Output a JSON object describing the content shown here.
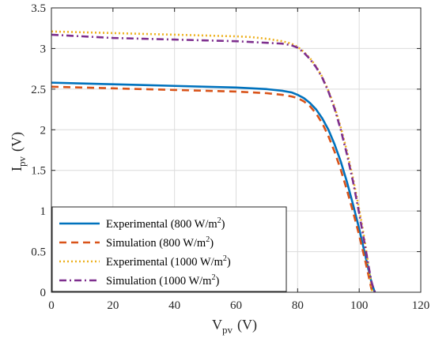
{
  "chart_data": {
    "type": "line",
    "title": "",
    "xlabel": {
      "main": "V",
      "sub": "pv",
      "unit": "(V)"
    },
    "ylabel": {
      "main": "I",
      "sub": "pv",
      "unit": "(V)"
    },
    "xlim": [
      0,
      120
    ],
    "ylim": [
      0,
      3.5
    ],
    "xticks": [
      0,
      20,
      40,
      60,
      80,
      100,
      120
    ],
    "yticks": [
      0,
      0.5,
      1,
      1.5,
      2,
      2.5,
      3,
      3.5
    ],
    "grid": true,
    "legend_position": "bottom-left",
    "series": [
      {
        "name": "Experimental (800 W/m2)",
        "label_main": "Experimental (800 W/m",
        "label_sup": "2",
        "label_end": ")",
        "color": "#0072BD",
        "style": "solid",
        "x": [
          0,
          10,
          20,
          30,
          40,
          50,
          60,
          65,
          70,
          75,
          78,
          80,
          82,
          84,
          86,
          88,
          90,
          92,
          94,
          96,
          98,
          100,
          102,
          103,
          104,
          104.8,
          105.1
        ],
        "y": [
          2.58,
          2.57,
          2.56,
          2.55,
          2.54,
          2.53,
          2.52,
          2.51,
          2.5,
          2.48,
          2.46,
          2.43,
          2.39,
          2.33,
          2.25,
          2.14,
          2.0,
          1.82,
          1.61,
          1.36,
          1.08,
          0.78,
          0.45,
          0.28,
          0.12,
          0.03,
          0
        ]
      },
      {
        "name": "Simulation (800 W/m2)",
        "label_main": "Simulation (800 W/m",
        "label_sup": "2",
        "label_end": ")",
        "color": "#D95319",
        "style": "dashed",
        "x": [
          0,
          10,
          20,
          30,
          40,
          50,
          60,
          65,
          70,
          75,
          78,
          80,
          82,
          84,
          86,
          88,
          90,
          92,
          94,
          96,
          98,
          100,
          101,
          102,
          103,
          103.8,
          104.3
        ],
        "y": [
          2.53,
          2.52,
          2.51,
          2.5,
          2.49,
          2.48,
          2.47,
          2.46,
          2.45,
          2.43,
          2.41,
          2.39,
          2.35,
          2.29,
          2.2,
          2.08,
          1.92,
          1.73,
          1.51,
          1.26,
          0.99,
          0.7,
          0.54,
          0.38,
          0.21,
          0.07,
          0
        ]
      },
      {
        "name": "Experimental (1000 W/m2)",
        "label_main": "Experimental (1000 W/m",
        "label_sup": "2",
        "label_end": ")",
        "color": "#EDB120",
        "style": "dotted",
        "x": [
          0,
          10,
          20,
          30,
          40,
          50,
          60,
          65,
          70,
          75,
          78,
          80,
          82,
          84,
          86,
          88,
          90,
          92,
          94,
          96,
          98,
          100,
          101,
          102,
          103,
          103.8,
          104.3
        ],
        "y": [
          3.21,
          3.2,
          3.19,
          3.18,
          3.17,
          3.16,
          3.15,
          3.14,
          3.12,
          3.09,
          3.06,
          3.02,
          2.96,
          2.88,
          2.78,
          2.65,
          2.48,
          2.28,
          2.03,
          1.74,
          1.4,
          1.02,
          0.81,
          0.58,
          0.33,
          0.12,
          0
        ]
      },
      {
        "name": "Simulation (1000 W/m2)",
        "label_main": "Simulation (1000 W/m",
        "label_sup": "2",
        "label_end": ")",
        "color": "#7E2F8E",
        "style": "dashdot",
        "x": [
          0,
          10,
          20,
          30,
          40,
          50,
          60,
          65,
          70,
          75,
          78,
          80,
          82,
          84,
          86,
          88,
          90,
          92,
          94,
          96,
          98,
          100,
          102,
          103,
          104,
          104.7,
          105.2
        ],
        "y": [
          3.17,
          3.15,
          3.13,
          3.12,
          3.11,
          3.1,
          3.09,
          3.08,
          3.07,
          3.06,
          3.04,
          3.01,
          2.95,
          2.87,
          2.77,
          2.64,
          2.47,
          2.26,
          2.0,
          1.7,
          1.36,
          0.97,
          0.55,
          0.33,
          0.13,
          0.03,
          0
        ]
      }
    ]
  }
}
